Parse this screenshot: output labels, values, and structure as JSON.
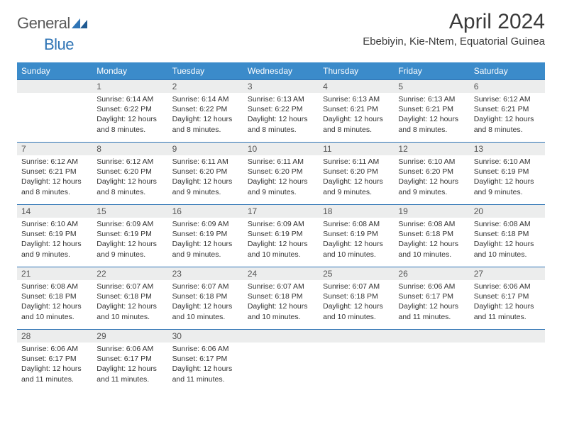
{
  "brand": {
    "part1": "General",
    "part2": "Blue"
  },
  "title": "April 2024",
  "location": "Ebebiyin, Kie-Ntem, Equatorial Guinea",
  "colors": {
    "header_bg": "#3b8bca",
    "border": "#2f74b5",
    "daynum_bg": "#eceded",
    "text": "#333333",
    "title_text": "#3a3a3a"
  },
  "layout": {
    "columns": 7,
    "rows": 5,
    "start_offset": 1,
    "fontsize_body": 10.5,
    "fontsize_daynum": 12,
    "fontsize_header": 12,
    "fontsize_title": 30,
    "fontsize_location": 15
  },
  "weekdays": [
    "Sunday",
    "Monday",
    "Tuesday",
    "Wednesday",
    "Thursday",
    "Friday",
    "Saturday"
  ],
  "days": [
    {
      "n": 1,
      "sunrise": "6:14 AM",
      "sunset": "6:22 PM",
      "daylight": "12 hours and 8 minutes."
    },
    {
      "n": 2,
      "sunrise": "6:14 AM",
      "sunset": "6:22 PM",
      "daylight": "12 hours and 8 minutes."
    },
    {
      "n": 3,
      "sunrise": "6:13 AM",
      "sunset": "6:22 PM",
      "daylight": "12 hours and 8 minutes."
    },
    {
      "n": 4,
      "sunrise": "6:13 AM",
      "sunset": "6:21 PM",
      "daylight": "12 hours and 8 minutes."
    },
    {
      "n": 5,
      "sunrise": "6:13 AM",
      "sunset": "6:21 PM",
      "daylight": "12 hours and 8 minutes."
    },
    {
      "n": 6,
      "sunrise": "6:12 AM",
      "sunset": "6:21 PM",
      "daylight": "12 hours and 8 minutes."
    },
    {
      "n": 7,
      "sunrise": "6:12 AM",
      "sunset": "6:21 PM",
      "daylight": "12 hours and 8 minutes."
    },
    {
      "n": 8,
      "sunrise": "6:12 AM",
      "sunset": "6:20 PM",
      "daylight": "12 hours and 8 minutes."
    },
    {
      "n": 9,
      "sunrise": "6:11 AM",
      "sunset": "6:20 PM",
      "daylight": "12 hours and 9 minutes."
    },
    {
      "n": 10,
      "sunrise": "6:11 AM",
      "sunset": "6:20 PM",
      "daylight": "12 hours and 9 minutes."
    },
    {
      "n": 11,
      "sunrise": "6:11 AM",
      "sunset": "6:20 PM",
      "daylight": "12 hours and 9 minutes."
    },
    {
      "n": 12,
      "sunrise": "6:10 AM",
      "sunset": "6:20 PM",
      "daylight": "12 hours and 9 minutes."
    },
    {
      "n": 13,
      "sunrise": "6:10 AM",
      "sunset": "6:19 PM",
      "daylight": "12 hours and 9 minutes."
    },
    {
      "n": 14,
      "sunrise": "6:10 AM",
      "sunset": "6:19 PM",
      "daylight": "12 hours and 9 minutes."
    },
    {
      "n": 15,
      "sunrise": "6:09 AM",
      "sunset": "6:19 PM",
      "daylight": "12 hours and 9 minutes."
    },
    {
      "n": 16,
      "sunrise": "6:09 AM",
      "sunset": "6:19 PM",
      "daylight": "12 hours and 9 minutes."
    },
    {
      "n": 17,
      "sunrise": "6:09 AM",
      "sunset": "6:19 PM",
      "daylight": "12 hours and 10 minutes."
    },
    {
      "n": 18,
      "sunrise": "6:08 AM",
      "sunset": "6:19 PM",
      "daylight": "12 hours and 10 minutes."
    },
    {
      "n": 19,
      "sunrise": "6:08 AM",
      "sunset": "6:18 PM",
      "daylight": "12 hours and 10 minutes."
    },
    {
      "n": 20,
      "sunrise": "6:08 AM",
      "sunset": "6:18 PM",
      "daylight": "12 hours and 10 minutes."
    },
    {
      "n": 21,
      "sunrise": "6:08 AM",
      "sunset": "6:18 PM",
      "daylight": "12 hours and 10 minutes."
    },
    {
      "n": 22,
      "sunrise": "6:07 AM",
      "sunset": "6:18 PM",
      "daylight": "12 hours and 10 minutes."
    },
    {
      "n": 23,
      "sunrise": "6:07 AM",
      "sunset": "6:18 PM",
      "daylight": "12 hours and 10 minutes."
    },
    {
      "n": 24,
      "sunrise": "6:07 AM",
      "sunset": "6:18 PM",
      "daylight": "12 hours and 10 minutes."
    },
    {
      "n": 25,
      "sunrise": "6:07 AM",
      "sunset": "6:18 PM",
      "daylight": "12 hours and 10 minutes."
    },
    {
      "n": 26,
      "sunrise": "6:06 AM",
      "sunset": "6:17 PM",
      "daylight": "12 hours and 11 minutes."
    },
    {
      "n": 27,
      "sunrise": "6:06 AM",
      "sunset": "6:17 PM",
      "daylight": "12 hours and 11 minutes."
    },
    {
      "n": 28,
      "sunrise": "6:06 AM",
      "sunset": "6:17 PM",
      "daylight": "12 hours and 11 minutes."
    },
    {
      "n": 29,
      "sunrise": "6:06 AM",
      "sunset": "6:17 PM",
      "daylight": "12 hours and 11 minutes."
    },
    {
      "n": 30,
      "sunrise": "6:06 AM",
      "sunset": "6:17 PM",
      "daylight": "12 hours and 11 minutes."
    }
  ],
  "labels": {
    "sunrise": "Sunrise:",
    "sunset": "Sunset:",
    "daylight": "Daylight:"
  }
}
